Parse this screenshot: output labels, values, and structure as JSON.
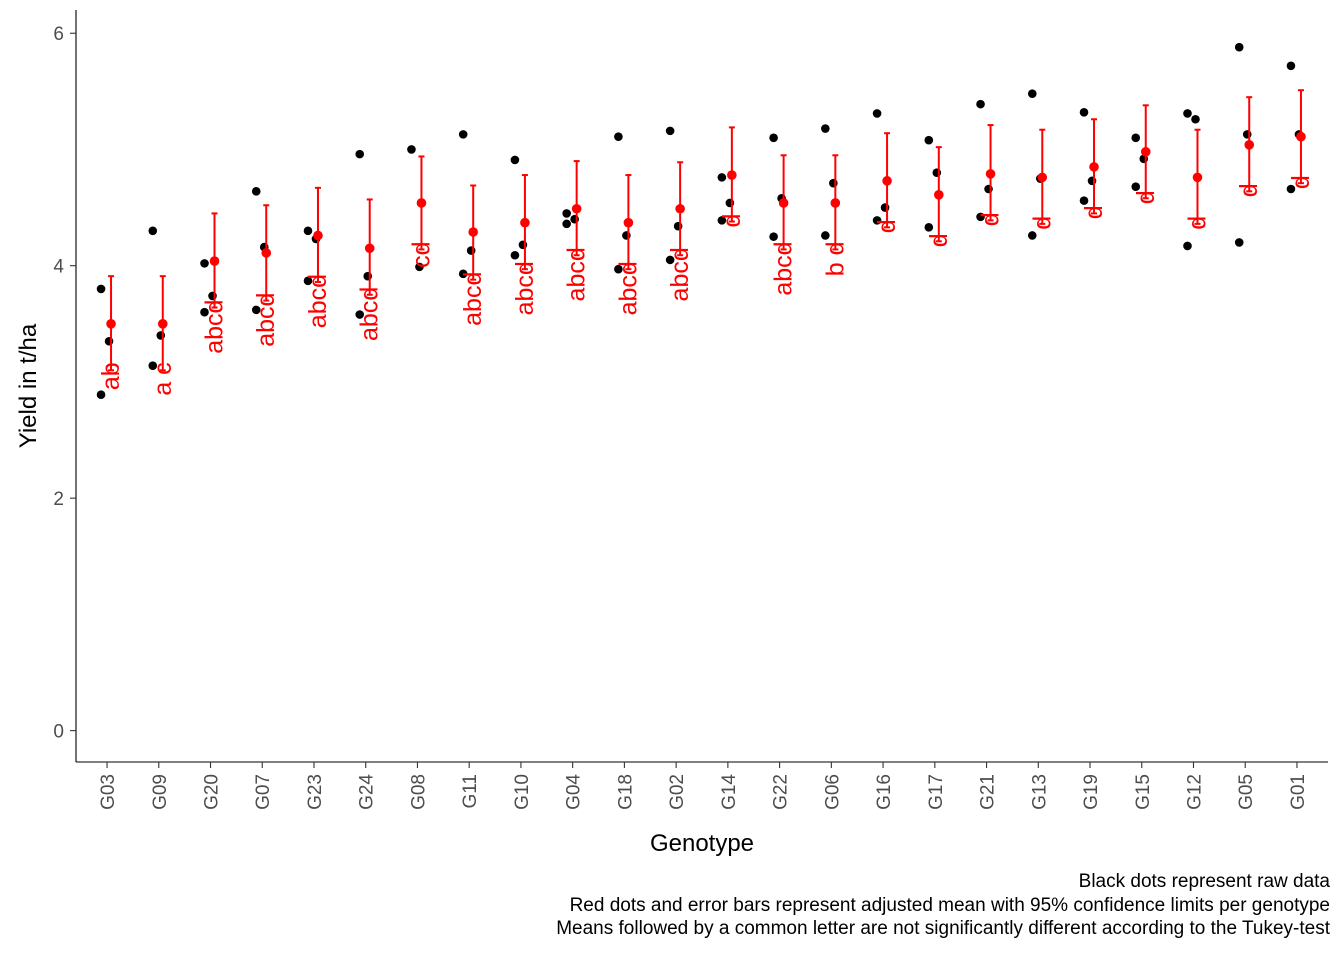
{
  "chart_data": {
    "type": "scatter",
    "xlabel": "Genotype",
    "ylabel": "Yield in t/ha",
    "ylim": [
      -0.27,
      6.2
    ],
    "yticks": [
      0,
      2,
      4,
      6
    ],
    "grid": false,
    "raw_point_color": "#000000",
    "mean_color": "#ff0000",
    "categories": [
      "G03",
      "G09",
      "G20",
      "G07",
      "G23",
      "G24",
      "G08",
      "G11",
      "G10",
      "G04",
      "G18",
      "G02",
      "G14",
      "G22",
      "G06",
      "G16",
      "G17",
      "G21",
      "G13",
      "G19",
      "G15",
      "G12",
      "G05",
      "G01"
    ],
    "raw_data": [
      [
        3.8,
        3.35,
        2.89
      ],
      [
        4.3,
        3.4,
        3.14
      ],
      [
        4.02,
        3.74,
        3.6
      ],
      [
        4.64,
        4.16,
        3.62
      ],
      [
        4.3,
        4.23,
        3.87
      ],
      [
        4.96,
        3.91,
        3.58
      ],
      [
        5.0,
        3.99
      ],
      [
        5.13,
        4.13,
        3.93
      ],
      [
        4.91,
        4.18,
        4.09
      ],
      [
        4.45,
        4.4,
        4.36
      ],
      [
        5.11,
        4.26,
        3.97
      ],
      [
        5.16,
        4.34,
        4.05
      ],
      [
        4.76,
        4.54,
        4.39
      ],
      [
        5.1,
        4.58,
        4.25
      ],
      [
        5.18,
        4.71,
        4.26
      ],
      [
        5.31,
        4.5,
        4.39
      ],
      [
        5.08,
        4.8,
        4.33
      ],
      [
        5.39,
        4.66,
        4.42
      ],
      [
        5.48,
        4.75,
        4.26
      ],
      [
        5.32,
        4.73,
        4.56
      ],
      [
        5.1,
        4.92,
        4.68
      ],
      [
        5.31,
        5.26,
        4.17
      ],
      [
        5.88,
        5.13,
        4.2
      ],
      [
        5.72,
        5.13,
        4.66
      ]
    ],
    "means": [
      3.5,
      3.5,
      4.04,
      4.11,
      4.26,
      4.15,
      4.54,
      4.29,
      4.37,
      4.49,
      4.37,
      4.49,
      4.78,
      4.54,
      4.54,
      4.73,
      4.61,
      4.79,
      4.76,
      4.85,
      4.98,
      4.76,
      5.04,
      5.11
    ],
    "ci_lower": [
      3.1,
      3.1,
      3.64,
      3.7,
      3.86,
      3.75,
      4.14,
      3.88,
      3.97,
      4.09,
      3.97,
      4.09,
      4.38,
      4.14,
      4.14,
      4.33,
      4.21,
      4.39,
      4.36,
      4.45,
      4.58,
      4.36,
      4.64,
      4.71
    ],
    "ci_upper": [
      3.91,
      3.91,
      4.45,
      4.52,
      4.67,
      4.57,
      4.94,
      4.69,
      4.78,
      4.9,
      4.78,
      4.89,
      5.19,
      4.95,
      4.95,
      5.14,
      5.02,
      5.21,
      5.17,
      5.26,
      5.38,
      5.17,
      5.45,
      5.51
    ],
    "letters": [
      "ab",
      "a c",
      "abcd",
      "abcd",
      "abcd",
      "abcd",
      "cd",
      "abcd",
      "abcd",
      "abcd",
      "abcd",
      "abcd",
      "d",
      "abcd",
      "b d",
      "d",
      "d",
      "d",
      "d",
      "d",
      "d",
      "d",
      "d",
      "d"
    ]
  },
  "caption": {
    "line1": "Black dots represent raw data",
    "line2": "Red dots and error bars represent adjusted mean with 95% confidence limits per genotype",
    "line3": "Means followed by a common letter are not significantly different according to the Tukey-test"
  }
}
